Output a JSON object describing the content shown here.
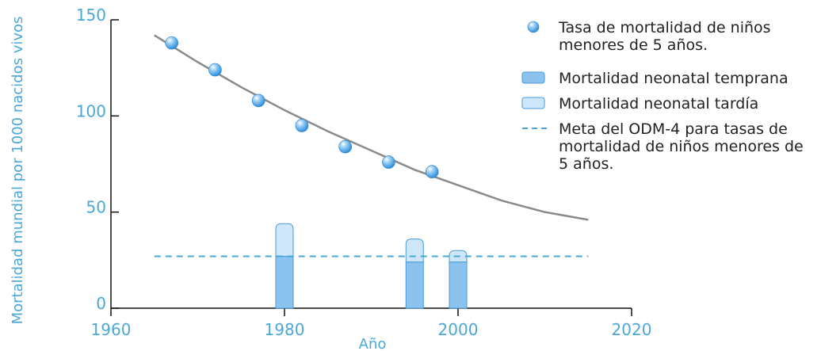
{
  "chart_data": {
    "type": "bar",
    "title": "",
    "xlabel": "Año",
    "ylabel": "Mortalidad mundial por 1000 nacidos vivos",
    "xlim": [
      1960,
      2020
    ],
    "ylim": [
      0,
      150
    ],
    "x_ticks": [
      "1960",
      "1980",
      "2000",
      "2020"
    ],
    "y_ticks": [
      "0",
      "50",
      "100",
      "150"
    ],
    "grid": false,
    "legend_placement": "top-right",
    "colors": {
      "axis_text": "#4aa8d8",
      "early_bar": "#8cc3ee",
      "late_bar": "#cde6fa",
      "bar_stroke": "#4a9ad6",
      "trend_line": "#8a8a8a",
      "target_line": "#45a9d6",
      "point": "#5aafe8"
    },
    "series": [
      {
        "name": "Tasa de mortalidad de niños menores de 5 años.",
        "kind": "scatter",
        "x": [
          1967,
          1972,
          1977,
          1982,
          1987,
          1992,
          1997
        ],
        "values": [
          138,
          124,
          108,
          95,
          84,
          76,
          71
        ]
      },
      {
        "name": "Mortalidad neonatal temprana",
        "kind": "bar",
        "x": [
          1980,
          1995,
          2000
        ],
        "values": [
          27,
          24,
          24
        ]
      },
      {
        "name": "Mortalidad neonatal tardía",
        "kind": "bar-stacked",
        "x": [
          1980,
          1995,
          2000
        ],
        "values": [
          17,
          12,
          6
        ]
      },
      {
        "name": "Meta del ODM-4 para tasas de mortalidad de niños menores de 5 años.",
        "kind": "dashed-line",
        "x": [
          1965,
          2015
        ],
        "values": [
          27,
          27
        ]
      }
    ],
    "trend_curve": {
      "x": [
        1965,
        1970,
        1975,
        1980,
        1985,
        1990,
        1995,
        2000,
        2005,
        2010,
        2015
      ],
      "values": [
        142,
        128,
        115,
        103,
        92,
        82,
        72,
        64,
        56,
        50,
        46
      ]
    },
    "legend": [
      {
        "symbol": "point",
        "lines": [
          "Tasa de mortalidad de niños",
          "menores de 5 años."
        ]
      },
      {
        "symbol": "early",
        "lines": [
          "Mortalidad neonatal temprana"
        ]
      },
      {
        "symbol": "late",
        "lines": [
          "Mortalidad neonatal tardía"
        ]
      },
      {
        "symbol": "dash",
        "lines": [
          "Meta del ODM-4 para tasas de",
          "mortalidad de niños menores de",
          "5 años."
        ]
      }
    ]
  }
}
